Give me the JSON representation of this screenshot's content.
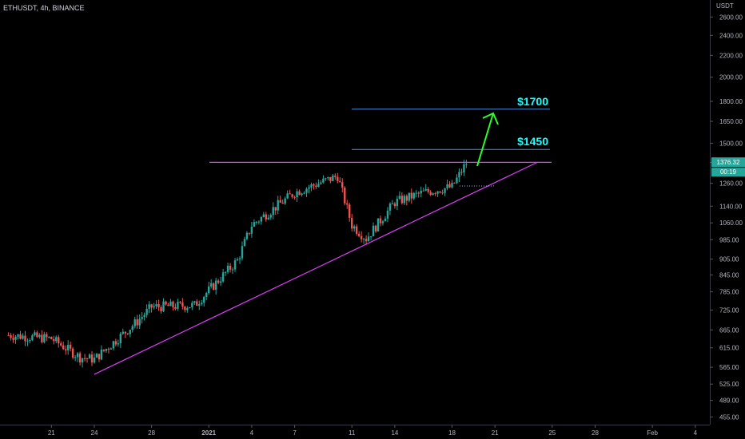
{
  "header": {
    "symbol_label": "ETHUSDT, 4h, BINANCE"
  },
  "price_axis": {
    "currency": "USDT",
    "ticks": [
      "2600.00",
      "2400.00",
      "2200.00",
      "2000.00",
      "1800.00",
      "1650.00",
      "1500.00",
      "1380.00",
      "1260.00",
      "1140.00",
      "1060.00",
      "985.00",
      "905.00",
      "845.00",
      "785.00",
      "725.00",
      "665.00",
      "615.00",
      "565.00",
      "525.00",
      "489.00",
      "455.00"
    ],
    "current_price": "1376.32",
    "countdown": "00:19"
  },
  "time_axis": {
    "ticks": [
      "21",
      "24",
      "28",
      "2021",
      "4",
      "7",
      "11",
      "14",
      "18",
      "21",
      "25",
      "28",
      "Feb",
      "4"
    ]
  },
  "annotations": [
    {
      "label": "$1700",
      "price": 1740
    },
    {
      "label": "$1450",
      "price": 1460
    }
  ],
  "chart_data": {
    "type": "candlestick",
    "instrument": "ETHUSDT",
    "timeframe": "4h",
    "exchange": "BINANCE",
    "current_price": 1376.32,
    "y_scale": "log",
    "ylim": [
      440,
      2800
    ],
    "resistance_level": 1380,
    "targets": [
      1700,
      1450
    ],
    "support_trendline": {
      "from": {
        "date": "2020-12-24",
        "price": 548
      },
      "to": {
        "date": "2021-01-24",
        "price": 1382
      }
    },
    "series": [
      {
        "name": "ETHUSDT",
        "approx_closes": [
          {
            "date": "2020-12-18",
            "close": 650
          },
          {
            "date": "2020-12-21",
            "close": 640
          },
          {
            "date": "2020-12-23",
            "close": 590
          },
          {
            "date": "2020-12-24",
            "close": 585
          },
          {
            "date": "2020-12-27",
            "close": 690
          },
          {
            "date": "2020-12-28",
            "close": 735
          },
          {
            "date": "2020-12-31",
            "close": 740
          },
          {
            "date": "2021-01-03",
            "close": 900
          },
          {
            "date": "2021-01-04",
            "close": 1050
          },
          {
            "date": "2021-01-07",
            "close": 1210
          },
          {
            "date": "2021-01-10",
            "close": 1300
          },
          {
            "date": "2021-01-11",
            "close": 1050
          },
          {
            "date": "2021-01-12",
            "close": 990
          },
          {
            "date": "2021-01-14",
            "close": 1160
          },
          {
            "date": "2021-01-16",
            "close": 1210
          },
          {
            "date": "2021-01-18",
            "close": 1240
          },
          {
            "date": "2021-01-19",
            "close": 1376.32
          }
        ]
      }
    ]
  },
  "colors": {
    "background": "#000000",
    "up": "#26a69a",
    "down": "#ef5350",
    "resistance": "#e040fb",
    "trendline": "#e040fb",
    "target_line": "#4a90e2",
    "target_label": "#19ffff",
    "arrow": "#2bff2b",
    "current_price_bg": "#26a69a"
  }
}
